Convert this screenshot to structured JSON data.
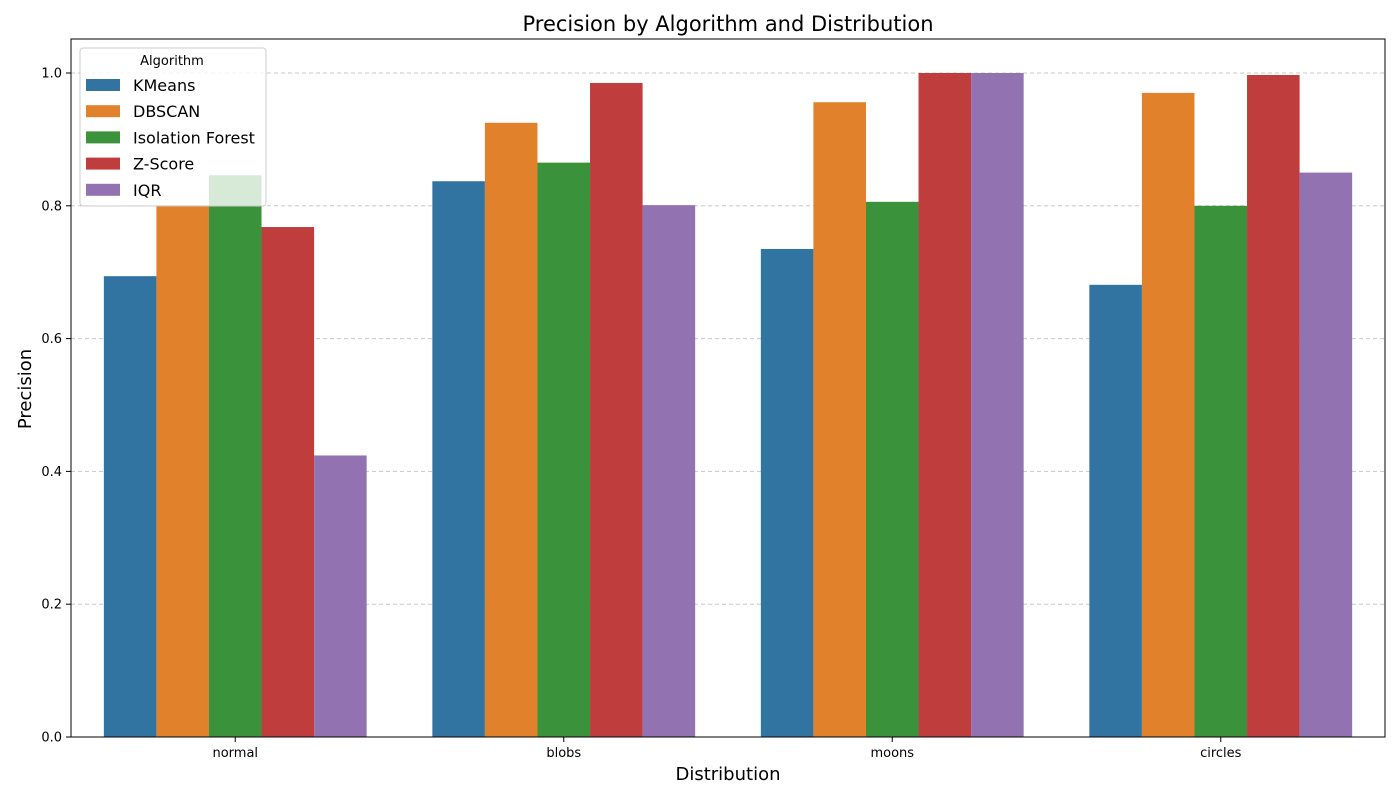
{
  "chart_data": {
    "type": "bar",
    "title": "Precision by Algorithm and Distribution",
    "xlabel": "Distribution",
    "ylabel": "Precision",
    "categories": [
      "normal",
      "blobs",
      "moons",
      "circles"
    ],
    "ylim": [
      0,
      1.05
    ],
    "yticks": [
      "0.0",
      "0.2",
      "0.4",
      "0.6",
      "0.8",
      "1.0"
    ],
    "grid": "y, dashed",
    "legend": {
      "title": "Algorithm",
      "placement": "top-left"
    },
    "series": [
      {
        "name": "KMeans",
        "color": "#3274a1",
        "values": [
          0.694,
          0.837,
          0.735,
          0.681
        ]
      },
      {
        "name": "DBSCAN",
        "color": "#e1812c",
        "values": [
          0.801,
          0.925,
          0.956,
          0.97
        ]
      },
      {
        "name": "Isolation Forest",
        "color": "#3a923a",
        "values": [
          0.846,
          0.865,
          0.806,
          0.8
        ]
      },
      {
        "name": "Z-Score",
        "color": "#c03d3e",
        "values": [
          0.768,
          0.985,
          1.0,
          0.997
        ]
      },
      {
        "name": "IQR",
        "color": "#9372b2",
        "values": [
          0.424,
          0.801,
          1.0,
          0.85
        ]
      }
    ]
  }
}
